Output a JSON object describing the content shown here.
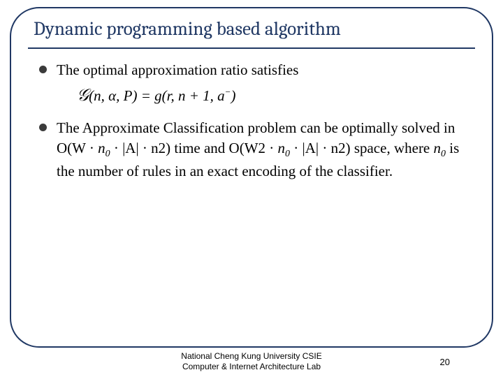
{
  "slide": {
    "title": "Dynamic programming based algorithm",
    "title_color": "#203864",
    "title_fontsize": 27,
    "frame_border_color": "#203864",
    "frame_border_radius": 42,
    "background_color": "#ffffff"
  },
  "bullets": [
    {
      "text": "The optimal approximation ratio satisfies",
      "equation_html": "𝒢(n, α, P) = g(r, n + 1, a⁻)"
    },
    {
      "text_html": "The Approximate Classification problem can be optimally solved in O(W · n₀ · |A| · n2) time and O(W2 · n₀ · |A| · n2) space, where n₀ is the number of rules in an exact encoding of the classifier."
    }
  ],
  "bullet_style": {
    "dot_color": "#3b3b3b",
    "dot_size": 11,
    "text_fontsize": 21,
    "text_color": "#000000"
  },
  "footer": {
    "line1": "National Cheng Kung University CSIE",
    "line2": "Computer & Internet Architecture Lab",
    "fontsize": 12
  },
  "page_number": "20"
}
